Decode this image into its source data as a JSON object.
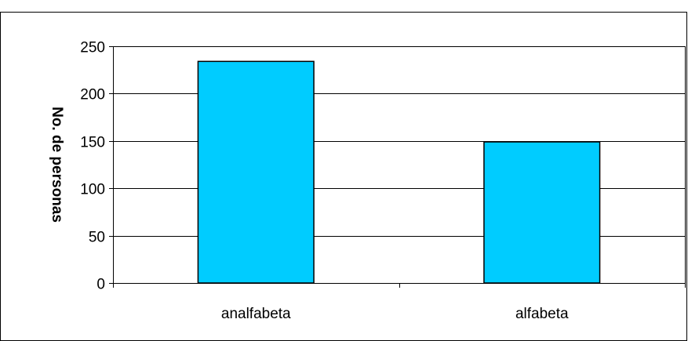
{
  "chart_data": {
    "type": "bar",
    "title": "",
    "xlabel": "",
    "ylabel": "No. de personas",
    "categories": [
      "analfabeta",
      "alfabeta"
    ],
    "values": [
      234,
      149
    ],
    "ylim": [
      0,
      250
    ],
    "yticks": [
      0,
      50,
      100,
      150,
      200,
      250
    ],
    "grid": true,
    "legend": "none",
    "colors": {
      "bar_fill": "#00CCFF",
      "bar_stroke": "#000000",
      "grid": "#000000",
      "plot_background": "#FFFFFF",
      "frame": "#000000"
    }
  }
}
